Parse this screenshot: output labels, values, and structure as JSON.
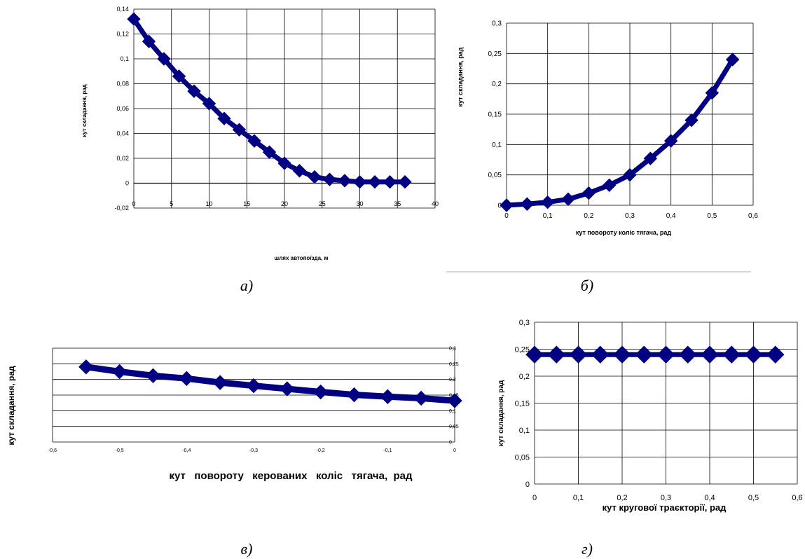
{
  "captions": [
    "а)",
    "б)",
    "в)",
    "г)"
  ],
  "chart_data": [
    {
      "type": "line",
      "xlabel": "шлях автопоїзда, м",
      "ylabel": "кут складання, рад",
      "xlim": [
        0,
        40
      ],
      "ylim": [
        -0.02,
        0.14
      ],
      "xticks": [
        "0",
        "5",
        "10",
        "15",
        "20",
        "25",
        "30",
        "35",
        "40"
      ],
      "yticks": [
        "-0,02",
        "0",
        "0,02",
        "0,04",
        "0,06",
        "0,08",
        "0,1",
        "0,12",
        "0,14"
      ],
      "grid": true,
      "series": [
        {
          "x": [
            0,
            2,
            4,
            6,
            8,
            10,
            12,
            14,
            16,
            18,
            20,
            22,
            24,
            26,
            28,
            30,
            32,
            34,
            36
          ],
          "y": [
            0.132,
            0.114,
            0.1,
            0.086,
            0.074,
            0.064,
            0.052,
            0.043,
            0.034,
            0.025,
            0.016,
            0.01,
            0.005,
            0.003,
            0.002,
            0.001,
            0.001,
            0.001,
            0.001
          ]
        }
      ]
    },
    {
      "type": "line",
      "xlabel": "кут повороту коліс тягача, рад",
      "ylabel": "кут складання, рад",
      "xlim": [
        0,
        0.6
      ],
      "ylim": [
        0,
        0.3
      ],
      "xticks": [
        "0",
        "0,1",
        "0,2",
        "0,3",
        "0,4",
        "0,5",
        "0,6"
      ],
      "yticks": [
        "0",
        "0,05",
        "0,1",
        "0,15",
        "0,2",
        "0,25",
        "0,3"
      ],
      "grid": true,
      "series": [
        {
          "x": [
            0,
            0.05,
            0.1,
            0.15,
            0.2,
            0.25,
            0.3,
            0.35,
            0.4,
            0.45,
            0.5,
            0.55
          ],
          "y": [
            0,
            0.002,
            0.005,
            0.01,
            0.02,
            0.033,
            0.05,
            0.077,
            0.106,
            0.14,
            0.185,
            0.24
          ]
        }
      ]
    },
    {
      "type": "line",
      "xlabel": "кут   повороту   керованих   коліс   тягача,  рад",
      "ylabel": "кут складання, рад",
      "xlim": [
        -0.6,
        0
      ],
      "ylim": [
        0,
        0.3
      ],
      "xticks": [
        "-0,6",
        "-0,5",
        "-0,4",
        "-0,3",
        "-0,2",
        "-0,1",
        "0"
      ],
      "yticks": [
        "0",
        "0,05",
        "0,1",
        "0,15",
        "0,2",
        "0,25",
        "0,3"
      ],
      "grid": true,
      "series": [
        {
          "x": [
            -0.55,
            -0.5,
            -0.45,
            -0.4,
            -0.35,
            -0.3,
            -0.25,
            -0.2,
            -0.15,
            -0.1,
            -0.05,
            0
          ],
          "y": [
            0.24,
            0.225,
            0.212,
            0.203,
            0.19,
            0.18,
            0.17,
            0.16,
            0.151,
            0.145,
            0.14,
            0.132
          ]
        }
      ]
    },
    {
      "type": "line",
      "xlabel": "кут кругової траєкторії, рад",
      "ylabel": "кут складання, рад",
      "xlim": [
        0,
        0.6
      ],
      "ylim": [
        0,
        0.3
      ],
      "xticks": [
        "0",
        "0,1",
        "0,2",
        "0,3",
        "0,4",
        "0,5",
        "0,6"
      ],
      "yticks": [
        "0",
        "0,05",
        "0,1",
        "0,15",
        "0,2",
        "0,25",
        "0,3"
      ],
      "grid": true,
      "series": [
        {
          "x": [
            0,
            0.05,
            0.1,
            0.15,
            0.2,
            0.25,
            0.3,
            0.35,
            0.4,
            0.45,
            0.5,
            0.55
          ],
          "y": [
            0.24,
            0.24,
            0.24,
            0.24,
            0.24,
            0.24,
            0.24,
            0.24,
            0.24,
            0.24,
            0.24,
            0.24
          ]
        }
      ]
    }
  ],
  "colors": {
    "line": "#000080",
    "grid": "#000000",
    "text": "#000000"
  }
}
